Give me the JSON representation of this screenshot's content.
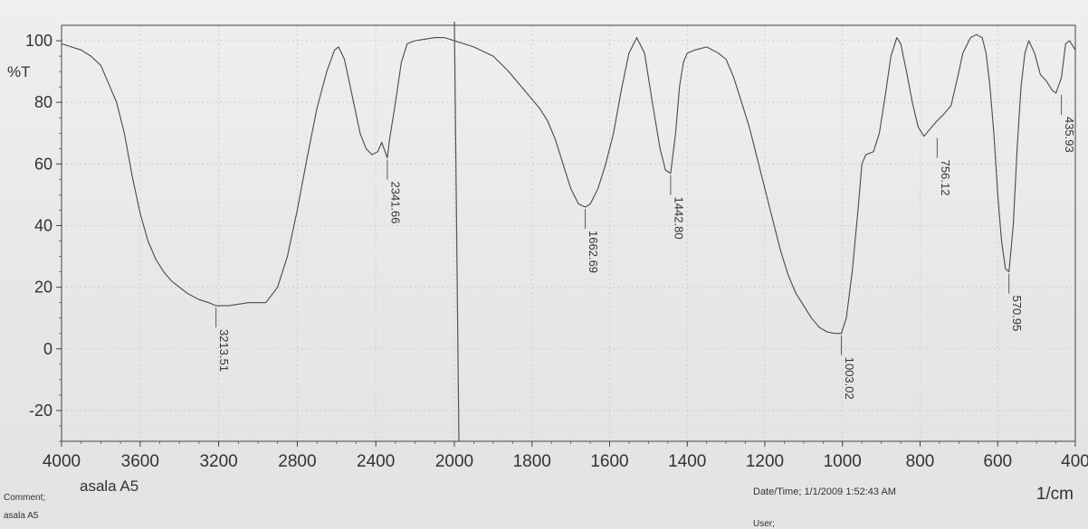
{
  "chart_data": {
    "type": "line",
    "ylabel": "%T",
    "xlabel": "1/cm",
    "xlim": [
      4000,
      400
    ],
    "ylim": [
      -30,
      105
    ],
    "x_ticks": [
      "4000",
      "3600",
      "3200",
      "2800",
      "2400",
      "2000",
      "1800",
      "1600",
      "1400",
      "1200",
      "1000",
      "800",
      "600",
      "400"
    ],
    "y_ticks": [
      "100",
      "80",
      "60",
      "40",
      "20",
      "0",
      "-20"
    ],
    "grid": true,
    "series": [
      {
        "points": [
          [
            4000,
            99
          ],
          [
            3950,
            98
          ],
          [
            3900,
            97
          ],
          [
            3850,
            95
          ],
          [
            3800,
            92
          ],
          [
            3760,
            86
          ],
          [
            3720,
            80
          ],
          [
            3680,
            70
          ],
          [
            3640,
            56
          ],
          [
            3600,
            44
          ],
          [
            3560,
            35
          ],
          [
            3520,
            29
          ],
          [
            3480,
            25
          ],
          [
            3440,
            22
          ],
          [
            3400,
            20
          ],
          [
            3360,
            18
          ],
          [
            3300,
            16
          ],
          [
            3250,
            15
          ],
          [
            3213.51,
            14
          ],
          [
            3150,
            14
          ],
          [
            3100,
            14.5
          ],
          [
            3050,
            15
          ],
          [
            3000,
            15
          ],
          [
            2960,
            15
          ],
          [
            2900,
            20
          ],
          [
            2850,
            30
          ],
          [
            2800,
            45
          ],
          [
            2750,
            62
          ],
          [
            2700,
            78
          ],
          [
            2650,
            90
          ],
          [
            2610,
            97
          ],
          [
            2590,
            98
          ],
          [
            2560,
            94
          ],
          [
            2520,
            82
          ],
          [
            2480,
            70
          ],
          [
            2450,
            65
          ],
          [
            2420,
            63
          ],
          [
            2390,
            64
          ],
          [
            2370,
            67
          ],
          [
            2341.66,
            62
          ],
          [
            2330,
            68
          ],
          [
            2300,
            80
          ],
          [
            2270,
            93
          ],
          [
            2240,
            99
          ],
          [
            2200,
            100
          ],
          [
            2150,
            100.5
          ],
          [
            2100,
            101
          ],
          [
            2050,
            101
          ],
          [
            2000,
            100
          ],
          [
            1950,
            98
          ],
          [
            1900,
            95
          ],
          [
            1860,
            90
          ],
          [
            1820,
            84
          ],
          [
            1800,
            81
          ],
          [
            1780,
            78
          ],
          [
            1760,
            74
          ],
          [
            1740,
            68
          ],
          [
            1720,
            60
          ],
          [
            1700,
            52
          ],
          [
            1680,
            47
          ],
          [
            1662.69,
            46
          ],
          [
            1650,
            47
          ],
          [
            1630,
            52
          ],
          [
            1610,
            60
          ],
          [
            1590,
            70
          ],
          [
            1570,
            84
          ],
          [
            1550,
            96
          ],
          [
            1530,
            101
          ],
          [
            1510,
            96
          ],
          [
            1490,
            80
          ],
          [
            1470,
            65
          ],
          [
            1456,
            58
          ],
          [
            1442.8,
            57
          ],
          [
            1430,
            70
          ],
          [
            1420,
            85
          ],
          [
            1410,
            93
          ],
          [
            1400,
            96
          ],
          [
            1380,
            97
          ],
          [
            1350,
            98
          ],
          [
            1320,
            96
          ],
          [
            1300,
            94
          ],
          [
            1280,
            88
          ],
          [
            1260,
            80
          ],
          [
            1240,
            72
          ],
          [
            1220,
            62
          ],
          [
            1200,
            52
          ],
          [
            1180,
            42
          ],
          [
            1160,
            32
          ],
          [
            1140,
            24
          ],
          [
            1120,
            18
          ],
          [
            1100,
            14
          ],
          [
            1080,
            10
          ],
          [
            1060,
            7
          ],
          [
            1040,
            5.5
          ],
          [
            1020,
            5
          ],
          [
            1003.02,
            5
          ],
          [
            990,
            10
          ],
          [
            975,
            25
          ],
          [
            960,
            45
          ],
          [
            950,
            60
          ],
          [
            940,
            63
          ],
          [
            920,
            64
          ],
          [
            905,
            70
          ],
          [
            890,
            82
          ],
          [
            875,
            95
          ],
          [
            860,
            101
          ],
          [
            850,
            99
          ],
          [
            835,
            90
          ],
          [
            820,
            80
          ],
          [
            805,
            72
          ],
          [
            790,
            69
          ],
          [
            770,
            72
          ],
          [
            756.12,
            74
          ],
          [
            740,
            76
          ],
          [
            720,
            79
          ],
          [
            700,
            90
          ],
          [
            690,
            96
          ],
          [
            670,
            101
          ],
          [
            655,
            102
          ],
          [
            640,
            101
          ],
          [
            630,
            96
          ],
          [
            620,
            85
          ],
          [
            610,
            70
          ],
          [
            600,
            50
          ],
          [
            590,
            35
          ],
          [
            580,
            26
          ],
          [
            570.95,
            25
          ],
          [
            560,
            40
          ],
          [
            550,
            65
          ],
          [
            540,
            85
          ],
          [
            530,
            96
          ],
          [
            520,
            100
          ],
          [
            505,
            96
          ],
          [
            490,
            89
          ],
          [
            475,
            87
          ],
          [
            460,
            84
          ],
          [
            450,
            83
          ],
          [
            435.93,
            88
          ],
          [
            425,
            99
          ],
          [
            415,
            100
          ],
          [
            405,
            98
          ],
          [
            400,
            97
          ]
        ]
      }
    ],
    "peak_labels": [
      {
        "x": 3213.51,
        "y": 14,
        "text": "3213.51"
      },
      {
        "x": 2341.66,
        "y": 62,
        "text": "2341.66"
      },
      {
        "x": 1662.69,
        "y": 46,
        "text": "1662.69"
      },
      {
        "x": 1442.8,
        "y": 57,
        "text": "1442.80"
      },
      {
        "x": 1003.02,
        "y": 5,
        "text": "1003.02"
      },
      {
        "x": 756.12,
        "y": 69,
        "text": "756.12"
      },
      {
        "x": 570.95,
        "y": 25,
        "text": "570.95"
      },
      {
        "x": 435.93,
        "y": 83,
        "text": "435.93"
      }
    ],
    "colors": {
      "line": "#4a4a4a",
      "grid": "#c8c8c6",
      "axis": "#444444",
      "text": "#333333"
    }
  },
  "footer": {
    "sample_name": "asala A5",
    "comment_label": "Comment;",
    "comment_value": "asala A5",
    "datetime": "Date/Time; 1/1/2009 1:52:43 AM",
    "user": "User;"
  }
}
